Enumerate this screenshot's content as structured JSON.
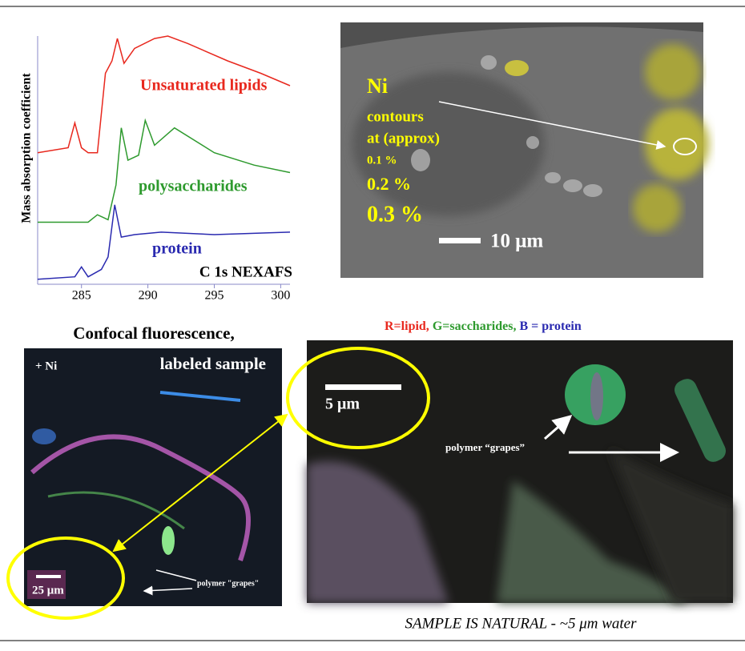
{
  "chart_data": {
    "type": "line",
    "y_label": "Mass absorption coefficient",
    "annotation": "C 1s NEXAFS",
    "xlim": [
      281.7,
      300.7
    ],
    "xticks": [
      285,
      290,
      295,
      300
    ],
    "ylim": [
      0,
      100
    ],
    "series": [
      {
        "name": "Unsaturated lipids",
        "color": "#e8281e",
        "x": [
          281.7,
          284.0,
          284.5,
          285.0,
          285.5,
          286.2,
          286.8,
          287.3,
          287.7,
          288.2,
          289.0,
          290.5,
          291.5,
          293.0,
          296.0,
          298.5,
          300.7
        ],
        "values": [
          53,
          55,
          65,
          55,
          53,
          53,
          85,
          90,
          99,
          89,
          95,
          99,
          100,
          97,
          90,
          85,
          80
        ]
      },
      {
        "name": "polysaccharides",
        "color": "#2e9a2e",
        "x": [
          281.7,
          285.5,
          286.2,
          287.0,
          287.6,
          288.0,
          288.5,
          289.3,
          289.8,
          290.5,
          292.0,
          295.0,
          298.0,
          300.7
        ],
        "values": [
          25,
          25,
          28,
          26,
          40,
          63,
          50,
          52,
          66,
          56,
          63,
          53,
          48,
          45
        ]
      },
      {
        "name": "protein",
        "color": "#2a2ab0",
        "x": [
          281.7,
          284.5,
          285.0,
          285.5,
          286.5,
          287.0,
          287.5,
          288.0,
          289.0,
          291.0,
          295.0,
          300.7
        ],
        "values": [
          2,
          3,
          7,
          3,
          6,
          11,
          32,
          19,
          20,
          21,
          20,
          21
        ]
      }
    ]
  },
  "ni_map": {
    "title": "Ni",
    "lines": [
      "contours",
      "at (approx)",
      "0.1 %",
      "0.2 %",
      "0.3 %"
    ],
    "scale": "10 μm"
  },
  "caption": {
    "lipid": "R=lipid,",
    "saccharides": "G=saccharides,",
    "protein": "B = protein"
  },
  "confocal": {
    "title": "Confocal fluorescence,",
    "subtitle": "labeled sample",
    "tag": "+ Ni",
    "scale": "25 μm",
    "pointer": "polymer \"grapes\""
  },
  "natural": {
    "scale": "5 μm",
    "pointer": "polymer “grapes”"
  },
  "footer": "SAMPLE IS NATURAL - ~5 μm   water"
}
